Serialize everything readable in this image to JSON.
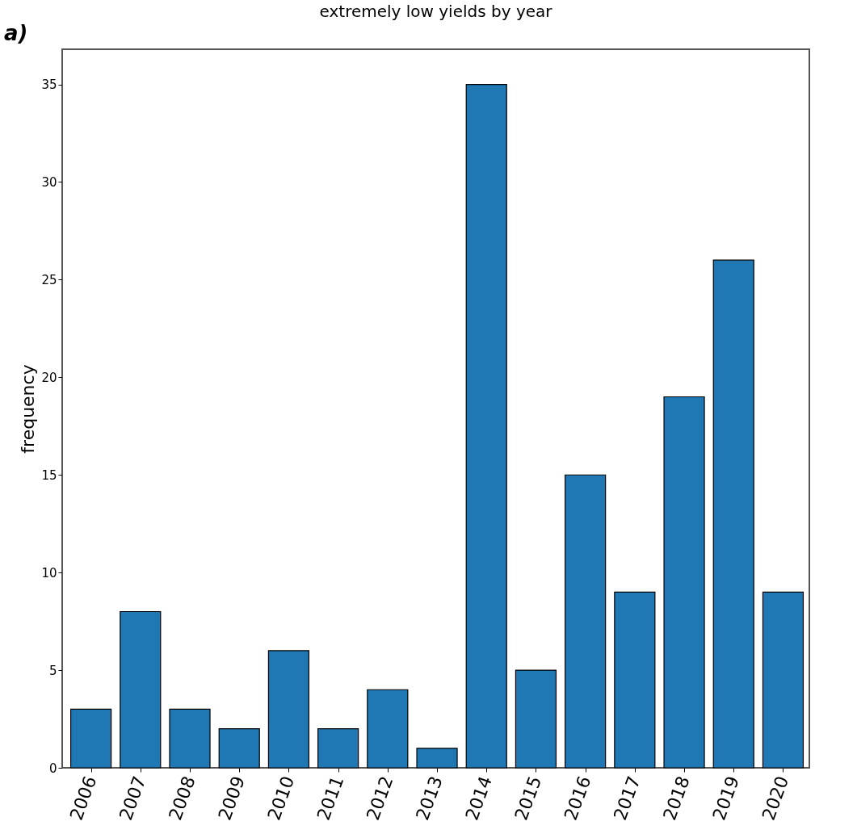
{
  "chart_data": {
    "type": "bar",
    "title": "extremely low yields by year",
    "ylabel": "frequency",
    "annotations": [
      "a)"
    ],
    "categories": [
      "2006",
      "2007",
      "2008",
      "2009",
      "2010",
      "2011",
      "2012",
      "2013",
      "2014",
      "2015",
      "2016",
      "2017",
      "2018",
      "2019",
      "2020"
    ],
    "series": [
      {
        "color": "#1f77b4",
        "values": [
          3,
          8,
          3,
          2,
          6,
          2,
          4,
          1,
          35,
          5,
          15,
          9,
          19,
          26,
          9
        ]
      }
    ],
    "ylim": [
      0,
      36.8
    ],
    "yticks": [
      0,
      5,
      10,
      15,
      20,
      25,
      30,
      35
    ],
    "grid": false,
    "legend": false
  }
}
